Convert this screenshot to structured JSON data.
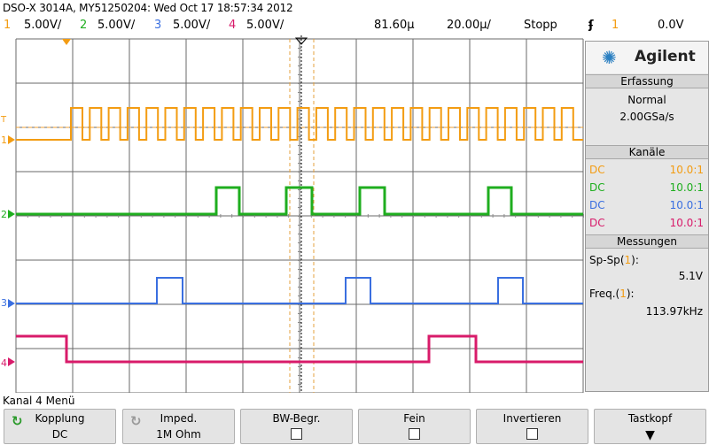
{
  "header": {
    "title": "DSO-X 3014A, MY51250204: Wed Oct 17 18:57:34 2012",
    "ch1": {
      "num": "1",
      "scale": "5.00V/",
      "color": "#f39c12"
    },
    "ch2": {
      "num": "2",
      "scale": "5.00V/",
      "color": "#1fae1f"
    },
    "ch3": {
      "num": "3",
      "scale": "5.00V/",
      "color": "#3a6fe0"
    },
    "ch4": {
      "num": "4",
      "scale": "5.00V/",
      "color": "#d81b6a"
    },
    "delay": "81.60µ",
    "timebase": "20.00µ/",
    "run_state": "Stopp",
    "trigger_icon": "trigger-edge-icon",
    "trigger_source": "1",
    "trigger_level": "0.0V"
  },
  "side_panel": {
    "brand": "Agilent",
    "acquisition_title": "Erfassung",
    "acquisition_mode": "Normal",
    "sample_rate": "2.00GSa/s",
    "channels_title": "Kanäle",
    "channels": [
      {
        "coupling": "DC",
        "probe": "10.0:1",
        "color": "#f39c12"
      },
      {
        "coupling": "DC",
        "probe": "10.0:1",
        "color": "#1fae1f"
      },
      {
        "coupling": "DC",
        "probe": "10.0:1",
        "color": "#3a6fe0"
      },
      {
        "coupling": "DC",
        "probe": "10.0:1",
        "color": "#d81b6a"
      }
    ],
    "measurements_title": "Messungen",
    "meas1_name": "Sp-Sp",
    "meas1_src": "1",
    "meas1_value": "5.1V",
    "meas2_name": "Freq.",
    "meas2_src": "1",
    "meas2_value": "113.97kHz"
  },
  "menu": {
    "title": "Kanal 4 Menü",
    "softkeys": [
      {
        "label": "Kopplung",
        "value": "DC"
      },
      {
        "label": "Imped.",
        "value": "1M Ohm"
      },
      {
        "label": "BW-Begr.",
        "value": ""
      },
      {
        "label": "Fein",
        "value": ""
      },
      {
        "label": "Invertieren",
        "value": ""
      },
      {
        "label": "Tastkopf",
        "value": ""
      }
    ]
  },
  "markers": {
    "ch1": "1",
    "ch2": "2",
    "ch3": "3",
    "ch4": "4",
    "trig": "T"
  }
}
